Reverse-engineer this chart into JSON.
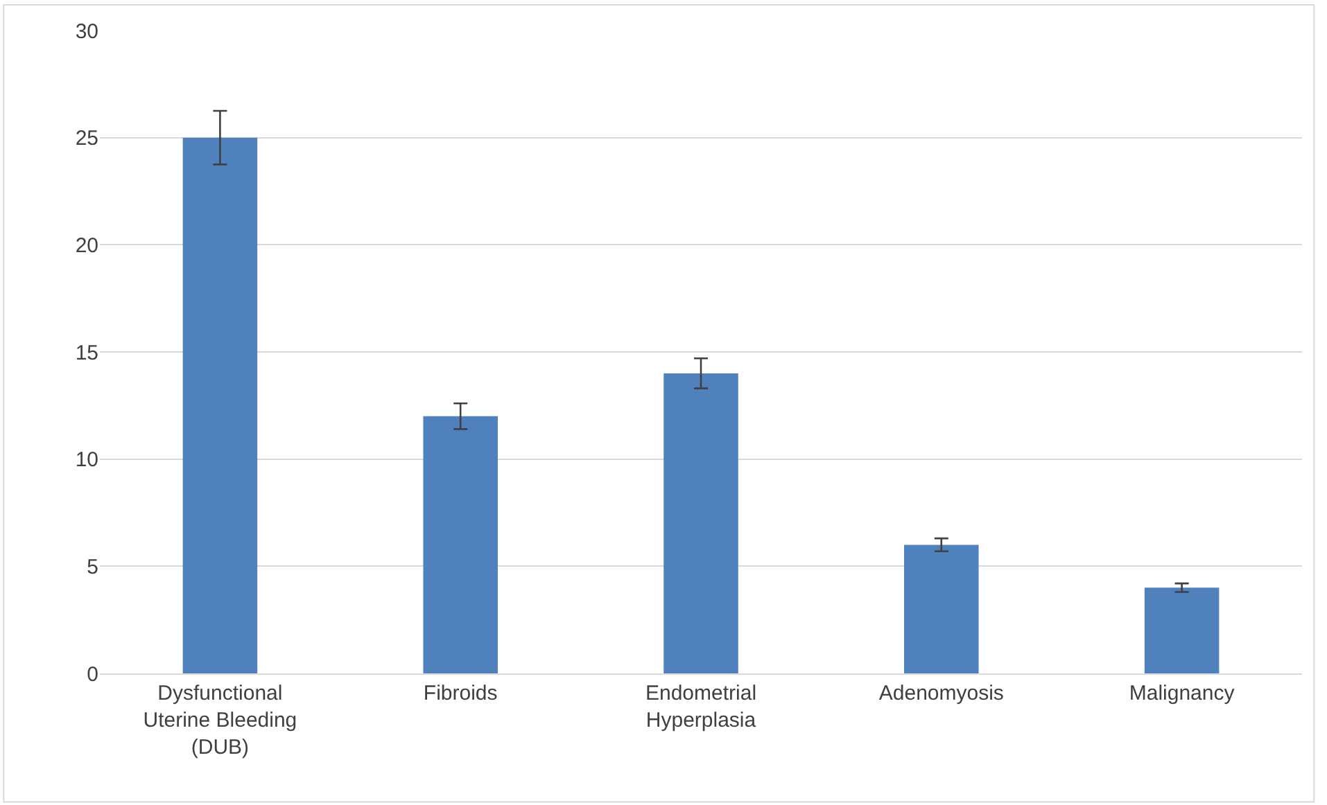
{
  "chart_data": {
    "type": "bar",
    "categories": [
      "Dysfunctional Uterine Bleeding (DUB)",
      "Fibroids",
      "Endometrial Hyperplasia",
      "Adenomyosis",
      "Malignancy"
    ],
    "values": [
      25,
      12,
      14,
      6,
      4
    ],
    "errors": [
      1.25,
      0.6,
      0.7,
      0.3,
      0.2
    ],
    "color": "#4f81bd",
    "ylim": [
      0,
      30
    ],
    "yticks": [
      0,
      5,
      10,
      15,
      20,
      25,
      30
    ],
    "grid": "y"
  }
}
